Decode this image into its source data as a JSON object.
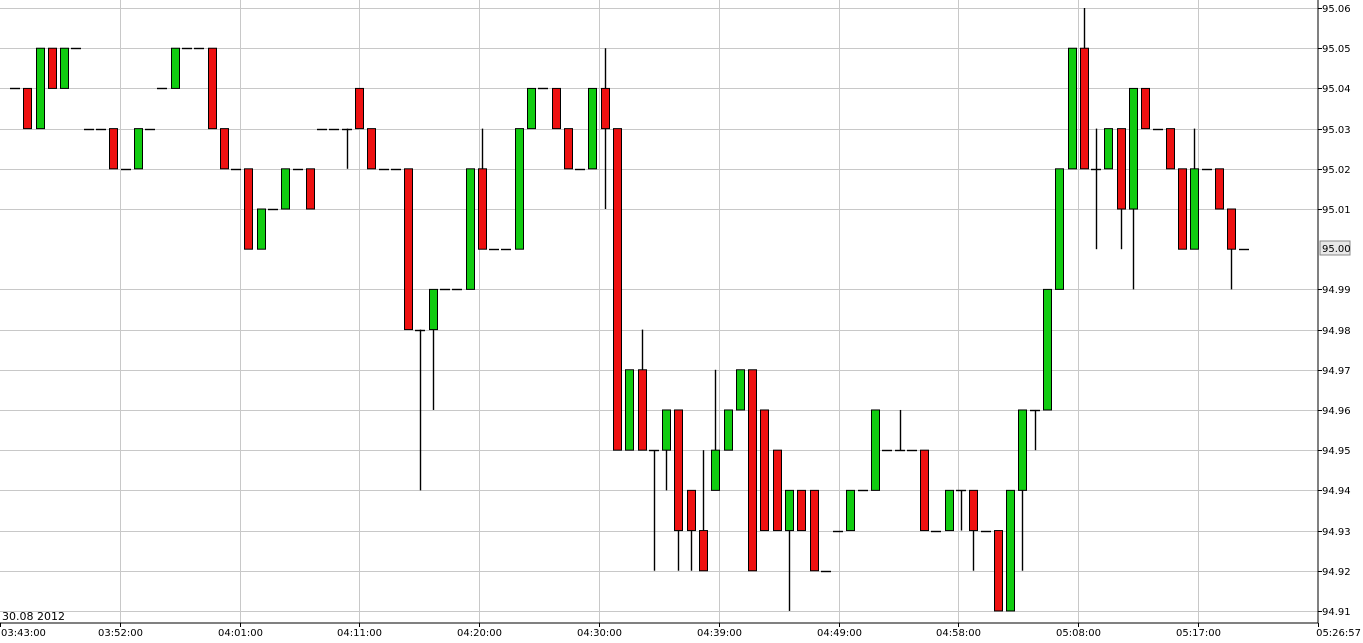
{
  "chart_data": {
    "type": "candlestick",
    "date_label": "30.08 2012",
    "last_price_label": "95.00",
    "x_tick_labels": [
      "03:43:00",
      "03:52:00",
      "04:01:00",
      "04:11:00",
      "04:20:00",
      "04:30:00",
      "04:39:00",
      "04:49:00",
      "04:58:00",
      "05:08:00",
      "05:17:00",
      "05:26:57"
    ],
    "y_tick_labels": [
      "95.06",
      "95.05",
      "95.04",
      "95.03",
      "95.02",
      "95.01",
      "94.99",
      "94.98",
      "94.97",
      "94.96",
      "94.95",
      "94.94",
      "94.93",
      "94.92",
      "94.91"
    ],
    "ylim": [
      94.907,
      95.062
    ],
    "grid": true,
    "colors": {
      "up": "#11cc11",
      "down": "#ee1111",
      "grid": "#c8c8c8",
      "line": "#000000"
    },
    "candles": [
      [
        95.04,
        95.04,
        95.04,
        95.04
      ],
      [
        95.04,
        95.04,
        95.03,
        95.03
      ],
      [
        95.03,
        95.05,
        95.03,
        95.05
      ],
      [
        95.05,
        95.05,
        95.04,
        95.04
      ],
      [
        95.04,
        95.05,
        95.04,
        95.05
      ],
      [
        95.05,
        95.05,
        95.05,
        95.05
      ],
      [
        95.03,
        95.03,
        95.03,
        95.03
      ],
      [
        95.03,
        95.03,
        95.03,
        95.03
      ],
      [
        95.03,
        95.03,
        95.02,
        95.02
      ],
      [
        95.02,
        95.02,
        95.02,
        95.02
      ],
      [
        95.02,
        95.03,
        95.02,
        95.03
      ],
      [
        95.03,
        95.03,
        95.03,
        95.03
      ],
      [
        95.04,
        95.04,
        95.04,
        95.04
      ],
      [
        95.04,
        95.05,
        95.04,
        95.05
      ],
      [
        95.05,
        95.05,
        95.05,
        95.05
      ],
      [
        95.05,
        95.05,
        95.05,
        95.05
      ],
      [
        95.05,
        95.05,
        95.03,
        95.03
      ],
      [
        95.03,
        95.03,
        95.02,
        95.02
      ],
      [
        95.02,
        95.02,
        95.02,
        95.02
      ],
      [
        95.02,
        95.02,
        95.0,
        95.0
      ],
      [
        95.0,
        95.01,
        95.0,
        95.01
      ],
      [
        95.01,
        95.01,
        95.01,
        95.01
      ],
      [
        95.01,
        95.02,
        95.01,
        95.02
      ],
      [
        95.02,
        95.02,
        95.02,
        95.02
      ],
      [
        95.02,
        95.02,
        95.01,
        95.01
      ],
      [
        95.03,
        95.03,
        95.03,
        95.03
      ],
      [
        95.03,
        95.03,
        95.03,
        95.03
      ],
      [
        95.03,
        95.03,
        95.02,
        95.03
      ],
      [
        95.04,
        95.04,
        95.03,
        95.03
      ],
      [
        95.03,
        95.03,
        95.02,
        95.02
      ],
      [
        95.02,
        95.02,
        95.02,
        95.02
      ],
      [
        95.02,
        95.02,
        95.02,
        95.02
      ],
      [
        95.02,
        95.02,
        94.98,
        94.98
      ],
      [
        94.98,
        94.98,
        94.94,
        94.98
      ],
      [
        94.98,
        94.99,
        94.96,
        94.99
      ],
      [
        94.99,
        94.99,
        94.99,
        94.99
      ],
      [
        94.99,
        94.99,
        94.99,
        94.99
      ],
      [
        94.99,
        95.02,
        94.99,
        95.02
      ],
      [
        95.02,
        95.03,
        95.0,
        95.0
      ],
      [
        95.0,
        95.0,
        95.0,
        95.0
      ],
      [
        95.0,
        95.0,
        95.0,
        95.0
      ],
      [
        95.0,
        95.03,
        95.0,
        95.03
      ],
      [
        95.03,
        95.04,
        95.03,
        95.04
      ],
      [
        95.04,
        95.04,
        95.04,
        95.04
      ],
      [
        95.04,
        95.04,
        95.03,
        95.03
      ],
      [
        95.03,
        95.03,
        95.02,
        95.02
      ],
      [
        95.02,
        95.02,
        95.02,
        95.02
      ],
      [
        95.02,
        95.04,
        95.02,
        95.04
      ],
      [
        95.04,
        95.05,
        95.01,
        95.03
      ],
      [
        95.03,
        95.03,
        94.95,
        94.95
      ],
      [
        94.95,
        94.97,
        94.95,
        94.97
      ],
      [
        94.97,
        94.98,
        94.95,
        94.95
      ],
      [
        94.95,
        94.95,
        94.92,
        94.95
      ],
      [
        94.95,
        94.96,
        94.94,
        94.96
      ],
      [
        94.96,
        94.96,
        94.92,
        94.93
      ],
      [
        94.94,
        94.94,
        94.92,
        94.93
      ],
      [
        94.93,
        94.95,
        94.92,
        94.92
      ],
      [
        94.94,
        94.97,
        94.94,
        94.95
      ],
      [
        94.95,
        94.96,
        94.95,
        94.96
      ],
      [
        94.96,
        94.97,
        94.96,
        94.97
      ],
      [
        94.97,
        94.97,
        94.92,
        94.92
      ],
      [
        94.96,
        94.96,
        94.93,
        94.93
      ],
      [
        94.95,
        94.95,
        94.93,
        94.93
      ],
      [
        94.93,
        94.94,
        94.91,
        94.94
      ],
      [
        94.94,
        94.94,
        94.93,
        94.93
      ],
      [
        94.94,
        94.94,
        94.92,
        94.92
      ],
      [
        94.92,
        94.92,
        94.92,
        94.92
      ],
      [
        94.93,
        94.93,
        94.93,
        94.93
      ],
      [
        94.93,
        94.94,
        94.93,
        94.94
      ],
      [
        94.94,
        94.94,
        94.94,
        94.94
      ],
      [
        94.94,
        94.96,
        94.94,
        94.96
      ],
      [
        94.95,
        94.95,
        94.95,
        94.95
      ],
      [
        94.95,
        94.96,
        94.95,
        94.95
      ],
      [
        94.95,
        94.95,
        94.95,
        94.95
      ],
      [
        94.95,
        94.95,
        94.93,
        94.93
      ],
      [
        94.93,
        94.93,
        94.93,
        94.93
      ],
      [
        94.93,
        94.94,
        94.93,
        94.94
      ],
      [
        94.94,
        94.94,
        94.93,
        94.94
      ],
      [
        94.94,
        94.94,
        94.92,
        94.93
      ],
      [
        94.93,
        94.93,
        94.93,
        94.93
      ],
      [
        94.93,
        94.93,
        94.91,
        94.91
      ],
      [
        94.91,
        94.94,
        94.91,
        94.94
      ],
      [
        94.94,
        94.96,
        94.92,
        94.96
      ],
      [
        94.96,
        94.96,
        94.95,
        94.96
      ],
      [
        94.96,
        94.99,
        94.96,
        94.99
      ],
      [
        94.99,
        95.02,
        94.99,
        95.02
      ],
      [
        95.02,
        95.05,
        95.02,
        95.05
      ],
      [
        95.05,
        95.06,
        95.02,
        95.02
      ],
      [
        95.02,
        95.03,
        95.0,
        95.02
      ],
      [
        95.02,
        95.03,
        95.02,
        95.03
      ],
      [
        95.03,
        95.03,
        95.0,
        95.01
      ],
      [
        95.01,
        95.04,
        94.99,
        95.04
      ],
      [
        95.04,
        95.04,
        95.03,
        95.03
      ],
      [
        95.03,
        95.03,
        95.03,
        95.03
      ],
      [
        95.03,
        95.03,
        95.02,
        95.02
      ],
      [
        95.02,
        95.02,
        95.0,
        95.0
      ],
      [
        95.0,
        95.03,
        95.0,
        95.02
      ],
      [
        95.02,
        95.02,
        95.02,
        95.02
      ],
      [
        95.02,
        95.02,
        95.01,
        95.01
      ],
      [
        95.01,
        95.01,
        94.99,
        95.0
      ],
      [
        95.0,
        95.0,
        95.0,
        95.0
      ]
    ]
  }
}
